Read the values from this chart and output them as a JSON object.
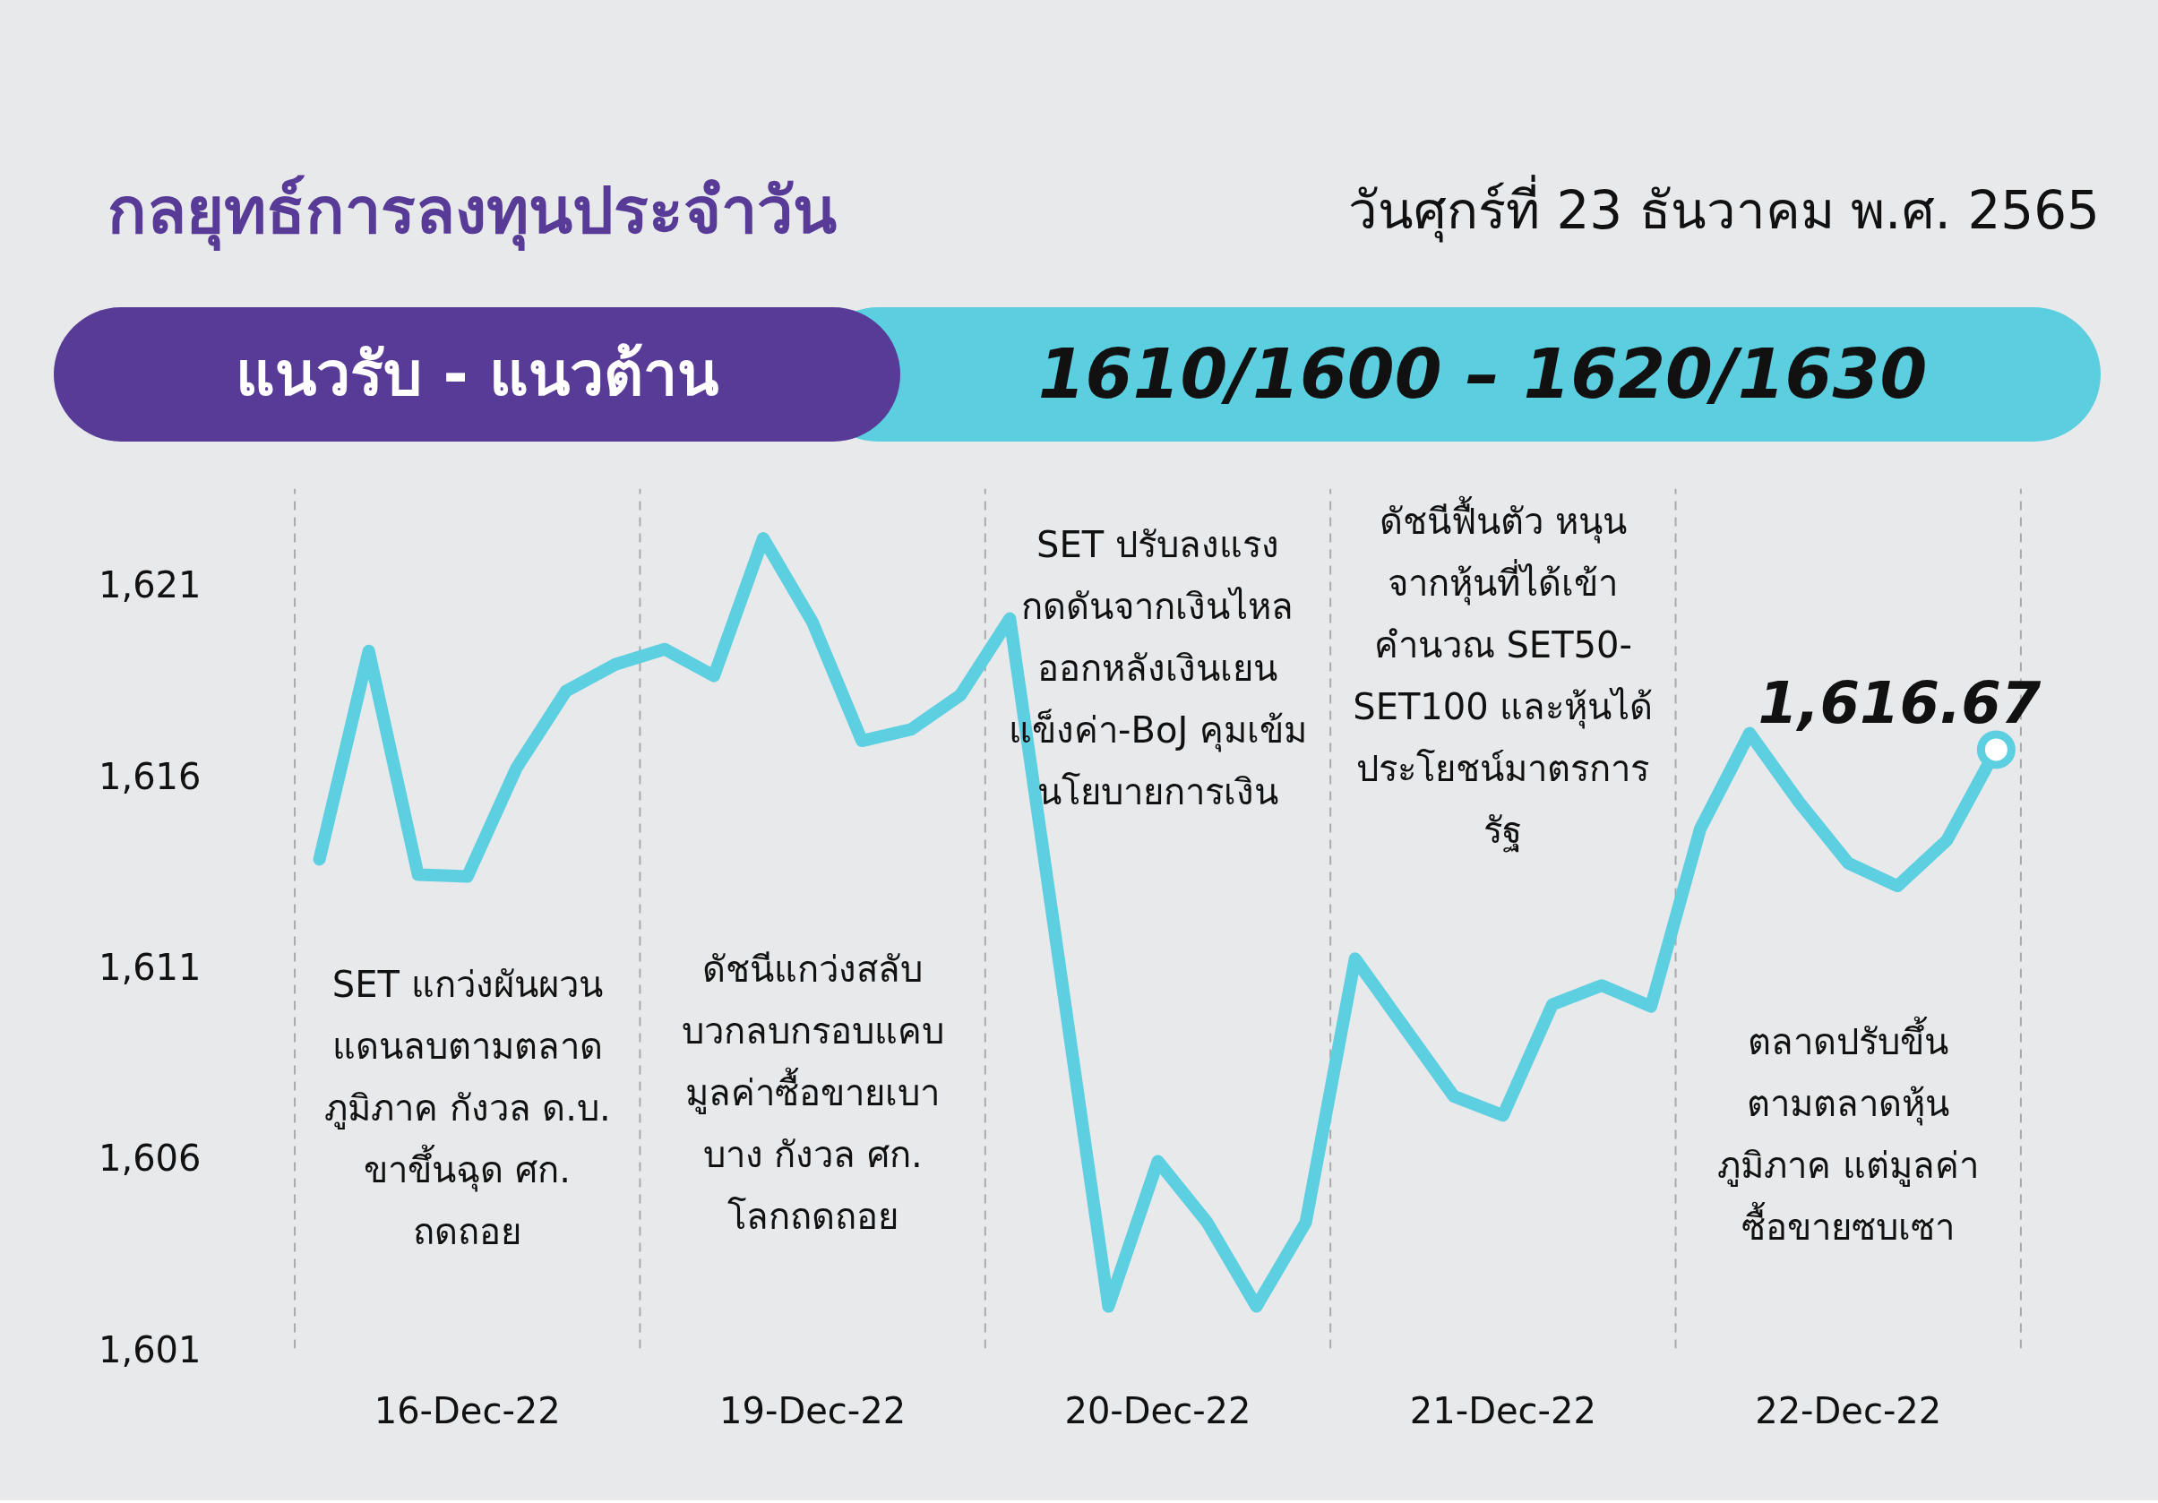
{
  "chart_data": {
    "type": "line",
    "title": "กลยุทธ์การลงทุนประจำวัน",
    "subtitle": "วันศุกร์ที่ 23 ธันวาคม พ.ศ. 2565",
    "annotations": [
      "แนวรับ - แนวต้าน",
      "1610/1600 – 1620/1630",
      "SET แกว่งผันผวน\nแดนลบตามตลาด\nภูมิภาค กังวล ด.บ.\nขาขึ้นฉุด ศก.\nถดถอย",
      "ดัชนีแกว่งสลับ\nบวกลบกรอบแคบ\nมูลค่าซื้อขายเบา\nบาง กังวล ศก.\nโลกถดถอย",
      "SET ปรับลงแรง\nกดดันจากเงินไหล\nออกหลังเงินเยน\nแข็งค่า-BoJ คุมเข้ม\nนโยบายการเงิน",
      "ดัชนีฟื้นตัว หนุน\nจากหุ้นที่ได้เข้า\nคำนวณ SET50-\nSET100 และหุ้นได้\nประโยชน์มาตรการ\nรัฐ",
      "ตลาดปรับขึ้น\nตามตลาดหุ้น\nภูมิภาค แต่มูลค่า\nซื้อขายซบเซา"
    ],
    "categories": [
      null,
      null,
      null,
      "16-Dec-22",
      null,
      null,
      null,
      null,
      null,
      null,
      "19-Dec-22",
      null,
      null,
      null,
      null,
      null,
      null,
      "20-Dec-22",
      null,
      null,
      null,
      null,
      null,
      null,
      "21-Dec-22",
      null,
      null,
      null,
      null,
      null,
      null,
      "22-Dec-22",
      null,
      null,
      null
    ],
    "series": [
      {
        "color": "#5ccfe0",
        "values": [
          1613.8,
          1619.25,
          1613.4,
          1613.35,
          1616.2,
          1618.2,
          1618.9,
          1619.3,
          1618.6,
          1622.2,
          1620.0,
          1616.9,
          1617.2,
          1618.1,
          1620.1,
          1611.1,
          1602.1,
          1605.9,
          1604.3,
          1602.1,
          1604.3,
          1611.2,
          1609.4,
          1607.6,
          1607.1,
          1610.0,
          1610.5,
          1609.95,
          1614.6,
          1617.1,
          1615.3,
          1613.7,
          1613.1,
          1614.3,
          1616.67
        ]
      },
      {
        "type": "scatter",
        "color": "#5ccfe0",
        "values": [
          null,
          null,
          null,
          null,
          null,
          null,
          null,
          null,
          null,
          null,
          null,
          null,
          null,
          null,
          null,
          null,
          null,
          null,
          null,
          null,
          null,
          null,
          null,
          null,
          null,
          null,
          null,
          null,
          null,
          null,
          null,
          null,
          null,
          null,
          1616.67
        ],
        "value_labels": [
          null,
          null,
          null,
          null,
          null,
          null,
          null,
          null,
          null,
          null,
          null,
          null,
          null,
          null,
          null,
          null,
          null,
          null,
          null,
          null,
          null,
          null,
          null,
          null,
          null,
          null,
          null,
          null,
          null,
          null,
          null,
          null,
          null,
          null,
          "1,616.67"
        ]
      }
    ],
    "ylim": [
      1601,
      1623.5
    ],
    "yticks": [
      {
        "value": 1601,
        "label": "1,601"
      },
      {
        "value": 1606,
        "label": "1,606"
      },
      {
        "value": 1611,
        "label": "1,611"
      },
      {
        "value": 1616,
        "label": "1,616"
      },
      {
        "value": 1621,
        "label": "1,621"
      }
    ],
    "grid": false
  }
}
